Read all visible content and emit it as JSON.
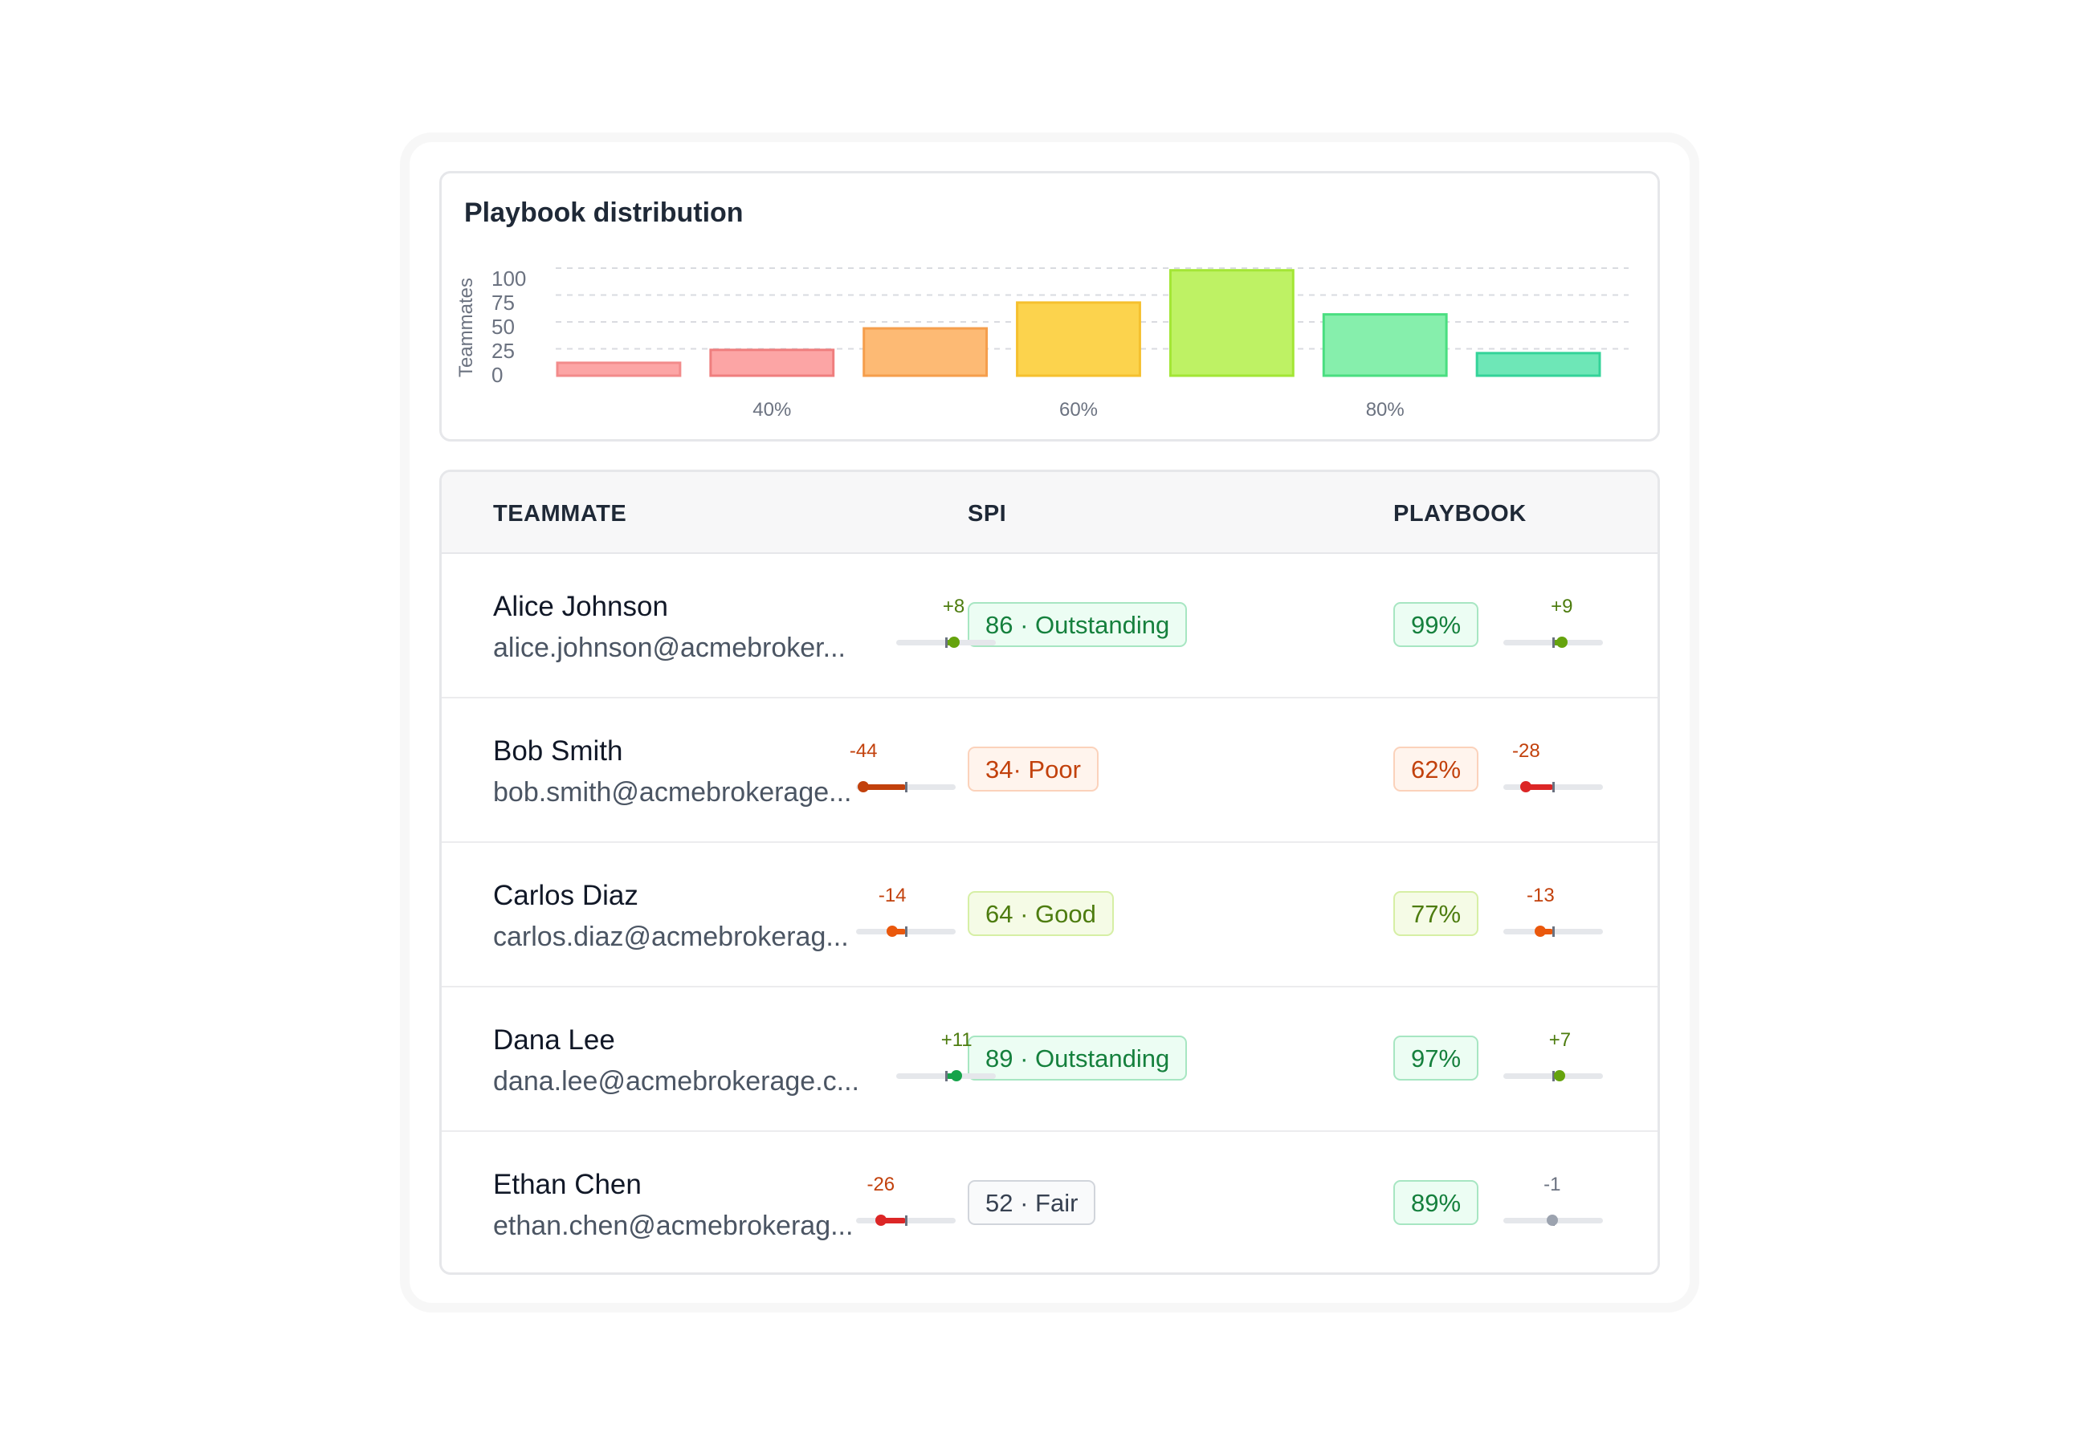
{
  "chart_data": {
    "type": "bar",
    "title": "Playbook distribution",
    "ylabel": "Teammates",
    "ylim": [
      0,
      100
    ],
    "yticks": [
      0,
      25,
      50,
      75,
      100
    ],
    "x_tick_labels": [
      {
        "category_index": 1,
        "label": "40%"
      },
      {
        "category_index": 3,
        "label": "60%"
      },
      {
        "category_index": 5,
        "label": "80%"
      }
    ],
    "values": [
      12,
      24,
      44,
      68,
      98,
      57,
      21
    ],
    "colors": [
      {
        "fill": "#fca5a5",
        "stroke": "#f28b8b"
      },
      {
        "fill": "#fca5a5",
        "stroke": "#ef7e7e"
      },
      {
        "fill": "#fdba74",
        "stroke": "#f59e4c"
      },
      {
        "fill": "#fcd34d",
        "stroke": "#f5c02e"
      },
      {
        "fill": "#bef264",
        "stroke": "#a3e635"
      },
      {
        "fill": "#86efac",
        "stroke": "#4ade80"
      },
      {
        "fill": "#6ee7b7",
        "stroke": "#34d399"
      }
    ],
    "grid": true
  },
  "table": {
    "headers": {
      "teammate": "TEAMMATE",
      "spi": "SPI",
      "playbook": "PLAYBOOK"
    },
    "rows": [
      {
        "name": "Alice Johnson",
        "email": "alice.johnson@acmebroker...",
        "spi_badge": "86 · Outstanding",
        "spi_tone": "green",
        "spi_delta": "+8",
        "spi_delta_value": 8,
        "spi_color": "#65a30d",
        "pb_badge": "99%",
        "pb_tone": "green",
        "pb_delta": "+9",
        "pb_delta_value": 9,
        "pb_color": "#65a30d"
      },
      {
        "name": "Bob Smith",
        "email": "bob.smith@acmebrokerage...",
        "spi_badge": "34· Poor",
        "spi_tone": "red",
        "spi_delta": "-44",
        "spi_delta_value": -44,
        "spi_color": "#c2410c",
        "pb_badge": "62%",
        "pb_tone": "red",
        "pb_delta": "-28",
        "pb_delta_value": -28,
        "pb_color": "#dc2626"
      },
      {
        "name": "Carlos Diaz",
        "email": "carlos.diaz@acmebrokerag...",
        "spi_badge": "64 · Good",
        "spi_tone": "lime",
        "spi_delta": "-14",
        "spi_delta_value": -14,
        "spi_color": "#ea580c",
        "pb_badge": "77%",
        "pb_tone": "lime",
        "pb_delta": "-13",
        "pb_delta_value": -13,
        "pb_color": "#ea580c"
      },
      {
        "name": "Dana Lee",
        "email": "dana.lee@acmebrokerage.c...",
        "spi_badge": "89 · Outstanding",
        "spi_tone": "green",
        "spi_delta": "+11",
        "spi_delta_value": 11,
        "spi_color": "#16a34a",
        "pb_badge": "97%",
        "pb_tone": "green",
        "pb_delta": "+7",
        "pb_delta_value": 7,
        "pb_color": "#65a30d"
      },
      {
        "name": "Ethan Chen",
        "email": "ethan.chen@acmebrokerag...",
        "spi_badge": "52 · Fair",
        "spi_tone": "gray",
        "spi_delta": "-26",
        "spi_delta_value": -26,
        "spi_color": "#dc2626",
        "pb_badge": "89%",
        "pb_tone": "green",
        "pb_delta": "-1",
        "pb_delta_value": -1,
        "pb_color": "#9ca3af"
      }
    ]
  }
}
